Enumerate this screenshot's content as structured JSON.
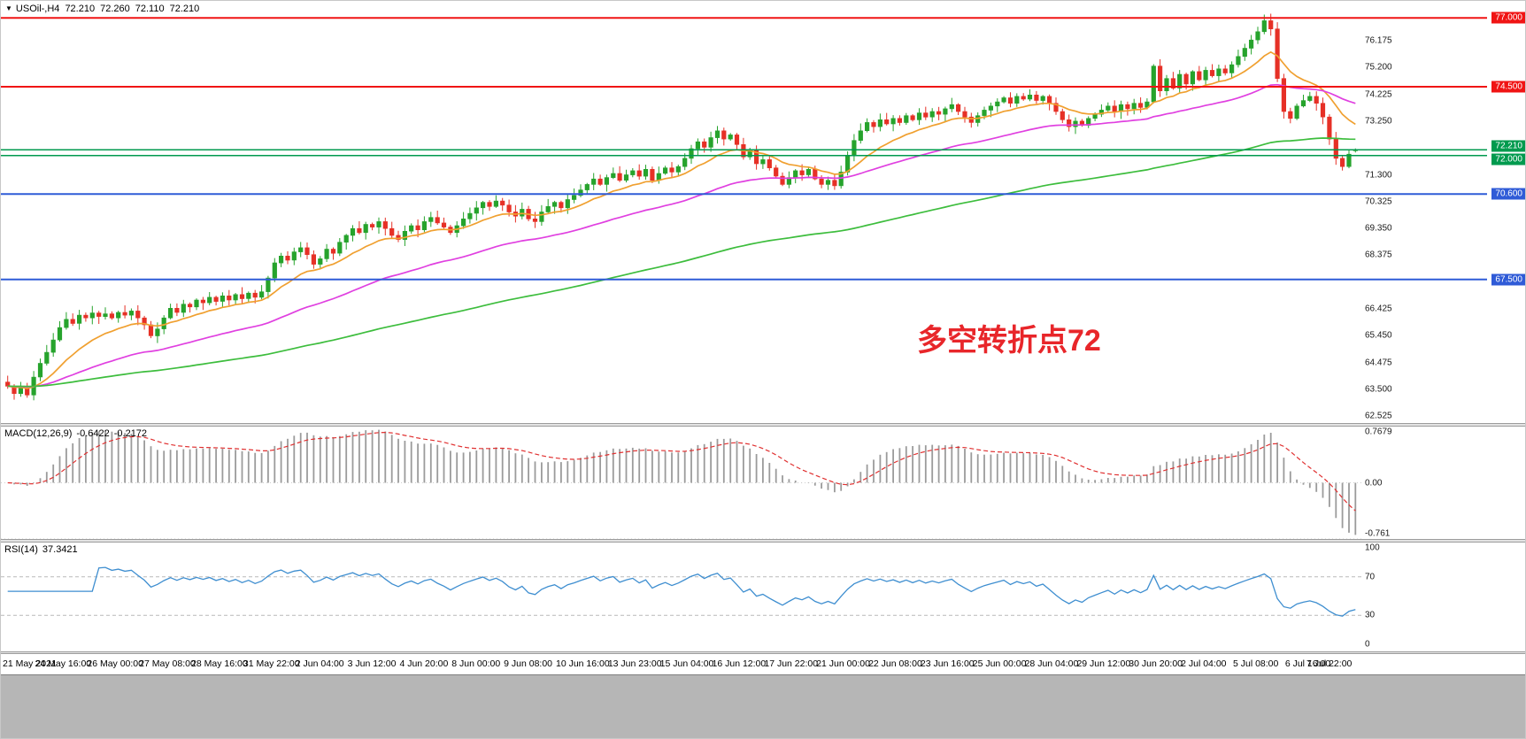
{
  "header": {
    "expander_icon": "▼",
    "symbol": "USOil-,H4",
    "open": "72.210",
    "high": "72.260",
    "low": "72.110",
    "close": "72.210"
  },
  "annotation": {
    "text": "多空转折点72",
    "color": "#e8262a"
  },
  "chart_data": [
    {
      "type": "candlestick",
      "panel": "price",
      "title": "USOil- H4 price",
      "ylim": [
        62.28,
        77.62
      ],
      "up_color": "#26a32c",
      "down_color": "#e63026",
      "yticks": [
        76.175,
        75.2,
        74.225,
        73.25,
        71.3,
        70.325,
        69.35,
        68.375,
        66.425,
        65.45,
        64.475,
        63.5,
        62.525
      ],
      "closes": [
        63.62,
        63.35,
        63.55,
        63.3,
        63.95,
        64.45,
        64.85,
        65.3,
        65.75,
        66.05,
        65.9,
        66.2,
        66.1,
        66.28,
        66.15,
        66.25,
        66.1,
        66.3,
        66.2,
        66.35,
        66.1,
        65.85,
        65.45,
        65.7,
        66.1,
        66.45,
        66.3,
        66.6,
        66.5,
        66.75,
        66.65,
        66.85,
        66.7,
        66.9,
        66.75,
        66.95,
        66.8,
        67.0,
        66.85,
        67.05,
        67.55,
        68.1,
        68.35,
        68.2,
        68.5,
        68.65,
        68.4,
        68.05,
        68.25,
        68.6,
        68.45,
        68.85,
        69.1,
        69.35,
        69.2,
        69.5,
        69.4,
        69.6,
        69.35,
        69.1,
        68.95,
        69.25,
        69.45,
        69.3,
        69.6,
        69.75,
        69.55,
        69.4,
        69.2,
        69.45,
        69.7,
        69.9,
        70.1,
        70.3,
        70.15,
        70.35,
        70.2,
        69.95,
        69.8,
        70.05,
        69.7,
        69.6,
        69.95,
        70.15,
        70.3,
        70.1,
        70.4,
        70.55,
        70.75,
        70.95,
        71.15,
        70.95,
        71.2,
        71.35,
        71.1,
        71.3,
        71.45,
        71.25,
        71.5,
        71.1,
        71.35,
        71.55,
        71.4,
        71.6,
        71.9,
        72.25,
        72.5,
        72.3,
        72.65,
        72.9,
        72.6,
        72.75,
        72.4,
        71.95,
        72.2,
        71.7,
        71.85,
        71.55,
        71.25,
        70.95,
        71.2,
        71.45,
        71.3,
        71.5,
        71.15,
        70.95,
        71.1,
        70.9,
        71.4,
        72.0,
        72.55,
        72.9,
        73.2,
        73.05,
        73.3,
        73.15,
        73.35,
        73.2,
        73.45,
        73.3,
        73.55,
        73.4,
        73.6,
        73.5,
        73.7,
        73.85,
        73.6,
        73.4,
        73.2,
        73.45,
        73.65,
        73.8,
        73.95,
        74.1,
        73.9,
        74.15,
        74.05,
        74.2,
        74.0,
        74.15,
        73.9,
        73.6,
        73.3,
        73.05,
        73.25,
        73.1,
        73.35,
        73.5,
        73.65,
        73.8,
        73.6,
        73.85,
        73.7,
        73.9,
        73.75,
        73.95,
        75.25,
        74.35,
        74.8,
        74.45,
        74.95,
        74.6,
        75.05,
        74.75,
        75.1,
        74.9,
        75.15,
        75.0,
        75.3,
        75.6,
        75.9,
        76.2,
        76.5,
        76.9,
        76.6,
        74.8,
        73.6,
        73.35,
        73.8,
        74.0,
        74.15,
        73.9,
        73.4,
        72.6,
        71.9,
        71.6,
        72.05,
        72.21
      ],
      "last_bar": {
        "open": 72.21,
        "high": 72.26,
        "low": 72.11,
        "close": 72.21
      },
      "hlines": [
        {
          "price": 77.0,
          "color": "#f01414",
          "width": 2,
          "label": "77.000",
          "dy": 0
        },
        {
          "price": 74.5,
          "color": "#f01414",
          "width": 2,
          "label": "74.500",
          "dy": 0
        },
        {
          "price": 72.21,
          "color": "#009a4e",
          "width": 1.5,
          "label": "72.210",
          "dy": -4
        },
        {
          "price": 72.0,
          "color": "#009a4e",
          "width": 1.5,
          "label": "72.000",
          "dy": 4
        },
        {
          "price": 70.6,
          "color": "#2f5bd7",
          "width": 2,
          "label": "70.600",
          "dy": 0
        },
        {
          "price": 67.5,
          "color": "#2f5bd7",
          "width": 2,
          "label": "67.500",
          "dy": 0
        }
      ],
      "moving_averages": [
        {
          "name": "fast-ma",
          "period": 13,
          "color": "#f0a030"
        },
        {
          "name": "medium-ma",
          "period": 45,
          "color": "#e040e0"
        },
        {
          "name": "slow-ma",
          "period": 130,
          "color": "#3dbd3d"
        }
      ]
    },
    {
      "type": "macd-histogram",
      "panel": "indicator",
      "label": "MACD(12,26,9)",
      "value_main": "-0.6422",
      "value_signal": "-0.2172",
      "params": {
        "fast": 12,
        "slow": 26,
        "signal": 9
      },
      "histogram_color": "#9b9b9b",
      "signal_color": "#e03030",
      "yticks": [
        {
          "v": 0.7679,
          "t": "0.7679"
        },
        {
          "v": 0.0,
          "t": "0.00"
        },
        {
          "v": -0.761,
          "t": "-0.761"
        }
      ]
    },
    {
      "type": "line",
      "panel": "indicator",
      "label": "RSI(14)",
      "value": "37.3421",
      "period": 14,
      "line_color": "#3e8ed0",
      "levels": [
        70,
        30
      ],
      "yticks": [
        {
          "v": 100,
          "t": "100"
        },
        {
          "v": 70,
          "t": "70"
        },
        {
          "v": 30,
          "t": "30"
        },
        {
          "v": 0,
          "t": "0"
        }
      ]
    }
  ],
  "time_axis": {
    "labels": [
      {
        "bar": 0,
        "text": "21 May 2021"
      },
      {
        "bar": 8,
        "text": "24 May 16:00"
      },
      {
        "bar": 16,
        "text": "26 May 00:00"
      },
      {
        "bar": 24,
        "text": "27 May 08:00"
      },
      {
        "bar": 32,
        "text": "28 May 16:00"
      },
      {
        "bar": 40,
        "text": "31 May 22:00"
      },
      {
        "bar": 48,
        "text": "2 Jun 04:00"
      },
      {
        "bar": 56,
        "text": "3 Jun 12:00"
      },
      {
        "bar": 64,
        "text": "4 Jun 20:00"
      },
      {
        "bar": 72,
        "text": "8 Jun 00:00"
      },
      {
        "bar": 80,
        "text": "9 Jun 08:00"
      },
      {
        "bar": 88,
        "text": "10 Jun 16:00"
      },
      {
        "bar": 96,
        "text": "13 Jun 23:00"
      },
      {
        "bar": 104,
        "text": "15 Jun 04:00"
      },
      {
        "bar": 112,
        "text": "16 Jun 12:00"
      },
      {
        "bar": 120,
        "text": "17 Jun 22:00"
      },
      {
        "bar": 128,
        "text": "21 Jun 00:00"
      },
      {
        "bar": 136,
        "text": "22 Jun 08:00"
      },
      {
        "bar": 144,
        "text": "23 Jun 16:00"
      },
      {
        "bar": 152,
        "text": "25 Jun 00:00"
      },
      {
        "bar": 160,
        "text": "28 Jun 04:00"
      },
      {
        "bar": 168,
        "text": "29 Jun 12:00"
      },
      {
        "bar": 176,
        "text": "30 Jun 20:00"
      },
      {
        "bar": 184,
        "text": "2 Jul 04:00"
      },
      {
        "bar": 192,
        "text": "5 Jul 08:00"
      },
      {
        "bar": 200,
        "text": "6 Jul 16:00"
      },
      {
        "bar": 207,
        "text": "7 Jul 22:00"
      }
    ]
  }
}
